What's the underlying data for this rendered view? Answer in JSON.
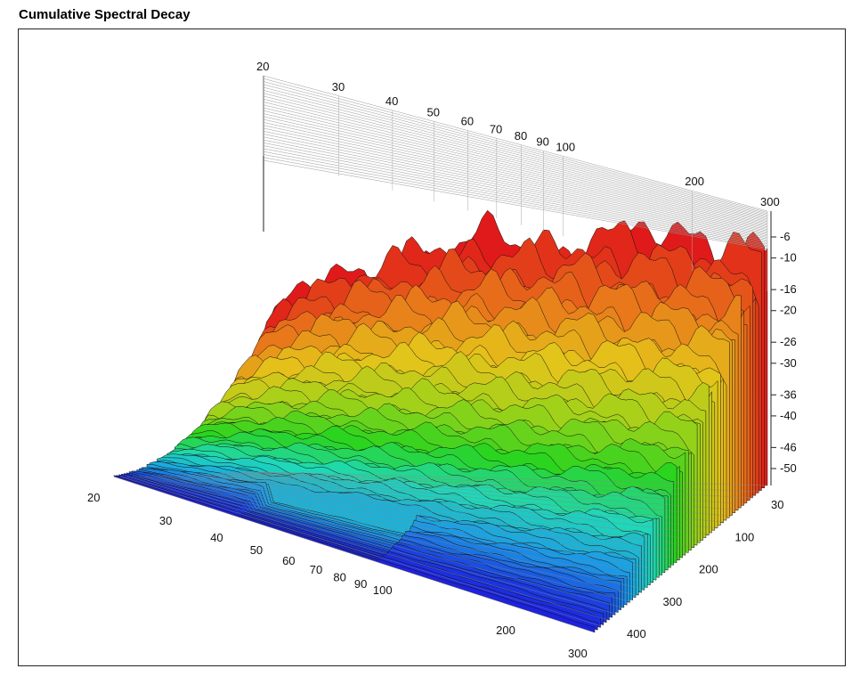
{
  "title": "Cumulative Spectral Decay",
  "chart_data": {
    "type": "waterfall-3d",
    "title": "Cumulative Spectral Decay",
    "x_axis": {
      "scale": "log",
      "range": [
        20,
        300
      ],
      "tick_labels_front": [
        "20",
        "30",
        "40",
        "50",
        "60",
        "70",
        "80",
        "90",
        "100",
        "200",
        "300"
      ],
      "tick_labels_back": [
        "20",
        "30",
        "40",
        "50",
        "60",
        "70",
        "80",
        "90",
        "100",
        "200",
        "300"
      ]
    },
    "z_axis": {
      "range": [
        30,
        400
      ],
      "tick_labels": [
        "30",
        "100",
        "200",
        "300",
        "400"
      ]
    },
    "y_axis": {
      "range": [
        -50,
        0
      ],
      "tick_labels": [
        "-6",
        "-10",
        "-16",
        "-20",
        "-26",
        "-30",
        "-36",
        "-40",
        "-46",
        "-50"
      ]
    },
    "colormap": [
      "#e01a1a",
      "#e8761a",
      "#e5c41a",
      "#9fd21a",
      "#2ad41f",
      "#1fd8b8",
      "#1a9ee6",
      "#1a3de0",
      "#2010e0"
    ],
    "slice_count": 60,
    "surface_levels": [
      -2,
      -5,
      -8,
      -12,
      -16,
      -20,
      -26,
      -32,
      -38,
      -44,
      -50
    ]
  }
}
